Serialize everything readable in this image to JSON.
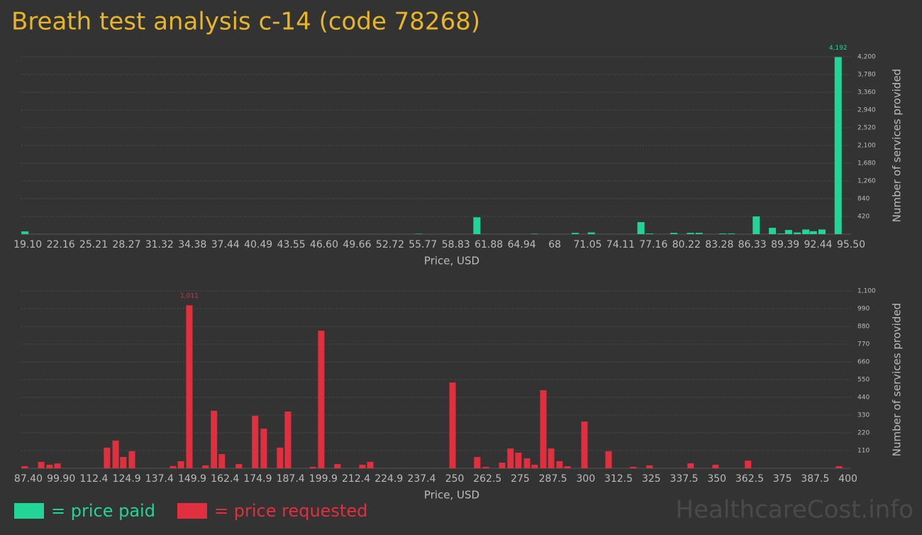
{
  "title": "Breath test analysis c-14 (code 78268)",
  "watermark": "HealthcareCost.info",
  "chart_data": [
    {
      "type": "bar",
      "name": "= price paid",
      "color": "#22d495",
      "x_label": "Price, USD",
      "y_label": "Number of services provided",
      "x": [
        18.84,
        55.39,
        60.78,
        66.1,
        69.9,
        71.4,
        76.0,
        76.8,
        79.06,
        80.6,
        81.4,
        83.6,
        84.4,
        86.7,
        88.2,
        89.0,
        89.7,
        90.5,
        91.3,
        92.0,
        92.8,
        94.3
      ],
      "values": [
        65,
        10,
        400,
        10,
        30,
        40,
        285,
        15,
        30,
        30,
        30,
        15,
        15,
        420,
        150,
        15,
        100,
        40,
        110,
        70,
        110,
        4192
      ],
      "value_labels": [
        null,
        null,
        null,
        null,
        null,
        null,
        null,
        null,
        null,
        null,
        null,
        null,
        null,
        null,
        null,
        null,
        null,
        null,
        null,
        null,
        null,
        "4,192"
      ],
      "xlim": [
        18.5,
        95.5
      ],
      "xticks": [
        {
          "value": 19.1,
          "label": "19.10"
        },
        22.16,
        25.21,
        28.27,
        31.32,
        34.38,
        37.44,
        40.49,
        43.55,
        {
          "value": 46.6,
          "label": "46.60"
        },
        49.66,
        52.72,
        55.77,
        58.83,
        61.88,
        64.94,
        68,
        71.05,
        74.11,
        77.16,
        80.22,
        83.28,
        86.33,
        89.39,
        92.44,
        {
          "value": 95.5,
          "label": "95.50"
        }
      ],
      "ylim": [
        0,
        4200
      ],
      "yticks": [
        420,
        840,
        {
          "value": 1260,
          "label": "1,260"
        },
        {
          "value": 1680,
          "label": "1,680"
        },
        {
          "value": 2100,
          "label": "2,100"
        },
        {
          "value": 2520,
          "label": "2,520"
        },
        {
          "value": 2940,
          "label": "2,940"
        },
        {
          "value": 3360,
          "label": "3,360"
        },
        {
          "value": 3780,
          "label": "3,780"
        },
        {
          "value": 4200,
          "label": "4,200"
        }
      ],
      "grid": true
    },
    {
      "type": "bar",
      "name": "= price requested",
      "color": "#e0303f",
      "x_label": "Price, USD",
      "y_label": "Number of services provided",
      "x": [
        86.0,
        92.3,
        95.5,
        98.5,
        117.4,
        120.7,
        123.6,
        126.9,
        142.6,
        145.6,
        148.8,
        155.0,
        158.2,
        161.2,
        167.7,
        173.9,
        177.2,
        183.4,
        186.4,
        195.9,
        199.1,
        205.3,
        214.8,
        217.8,
        249.2,
        258.6,
        261.9,
        268.1,
        271.3,
        274.3,
        277.6,
        280.5,
        283.8,
        286.8,
        290.0,
        293.0,
        299.5,
        308.7,
        318.1,
        324.3,
        340.0,
        349.5,
        361.9,
        396.6
      ],
      "values": [
        13,
        40,
        22,
        30,
        128,
        172,
        70,
        106,
        14,
        44,
        1011,
        18,
        357,
        88,
        26,
        326,
        246,
        128,
        352,
        9,
        853,
        26,
        22,
        40,
        532,
        70,
        9,
        35,
        123,
        97,
        62,
        22,
        484,
        123,
        44,
        13,
        290,
        106,
        9,
        18,
        31,
        22,
        48,
        13
      ],
      "value_labels": [
        null,
        null,
        null,
        null,
        null,
        null,
        null,
        null,
        null,
        null,
        "1,011",
        null,
        null,
        null,
        null,
        null,
        null,
        null,
        null,
        null,
        null,
        null,
        null,
        null,
        null,
        null,
        null,
        null,
        null,
        null,
        null,
        null,
        null,
        null,
        null,
        null,
        null,
        null,
        null,
        null,
        null,
        null,
        null,
        null
      ],
      "xlim": [
        84.7,
        401.2
      ],
      "xticks": [
        {
          "value": 87.4,
          "label": "87.40"
        },
        {
          "value": 99.9,
          "label": "99.90"
        },
        112.4,
        124.9,
        137.4,
        149.9,
        162.4,
        174.9,
        187.4,
        199.9,
        212.4,
        224.9,
        237.4,
        250,
        262.5,
        275,
        287.5,
        300,
        312.5,
        325,
        337.5,
        350,
        362.5,
        375,
        387.5,
        400
      ],
      "ylim": [
        0,
        1100
      ],
      "yticks": [
        110,
        220,
        330,
        440,
        550,
        660,
        770,
        880,
        990,
        {
          "value": 1100,
          "label": "1,100"
        }
      ],
      "grid": true
    }
  ]
}
